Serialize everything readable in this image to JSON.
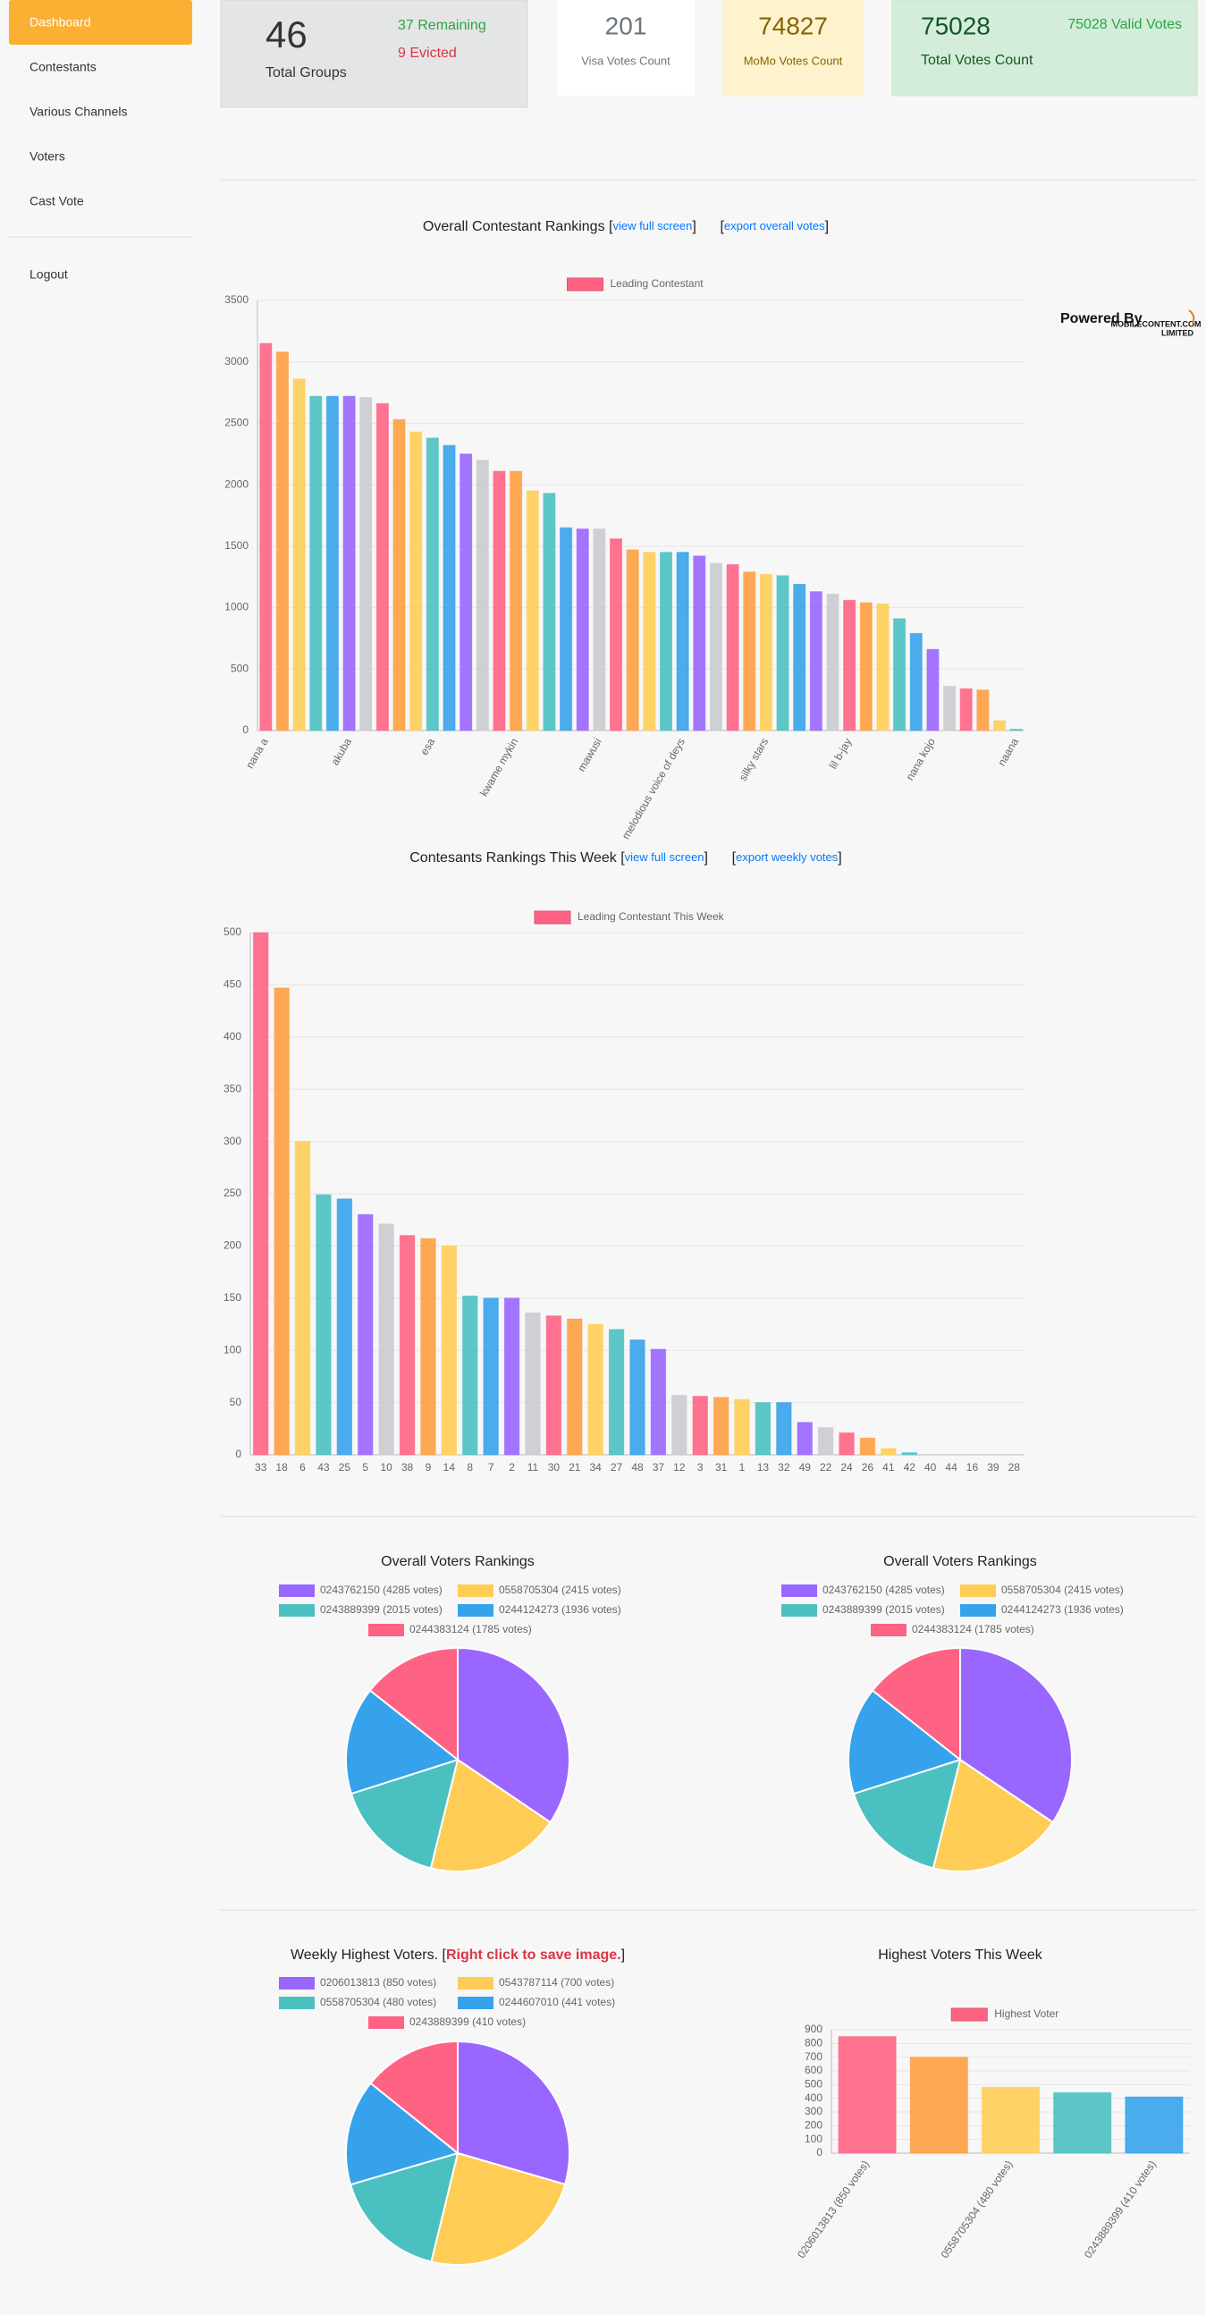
{
  "sidebar": {
    "items": [
      "Dashboard",
      "Contestants",
      "Various Channels",
      "Voters",
      "Cast Vote"
    ],
    "logout": "Logout"
  },
  "stats": {
    "groups": {
      "value": "46",
      "label": "Total Groups",
      "remaining": "37 Remaining",
      "evicted": "9 Evicted"
    },
    "visa": {
      "value": "201",
      "label": "Visa Votes Count"
    },
    "momo": {
      "value": "74827",
      "label": "MoMo Votes Count"
    },
    "total": {
      "value": "75028",
      "label": "Total Votes Count",
      "valid": "75028 Valid Votes"
    }
  },
  "powered_by": "Powered By",
  "logo": [
    "MOBILECONTENT.COM",
    "LIMITED"
  ],
  "chart_data": [
    {
      "type": "bar",
      "title_parts": [
        "Overall Contestant Rankings [",
        "view full screen",
        "]      [",
        "export overall votes",
        "]"
      ],
      "title_link_color": "#007bff",
      "legend": "Leading Contestant",
      "legend_color": "#ff6384",
      "categories": [
        "nana a",
        null,
        null,
        null,
        null,
        "akuba",
        null,
        null,
        null,
        null,
        "esa",
        null,
        null,
        null,
        null,
        "kwame mykin",
        null,
        null,
        null,
        null,
        "mawusi",
        null,
        null,
        null,
        null,
        "melodious voice of deys",
        null,
        null,
        null,
        null,
        "silky stars",
        null,
        null,
        null,
        null,
        "lil b-jay",
        null,
        null,
        null,
        null,
        "nana kojo",
        null,
        null,
        null,
        null,
        "naana"
      ],
      "values": [
        3150,
        3080,
        2860,
        2720,
        2720,
        2720,
        2710,
        2660,
        2530,
        2430,
        2380,
        2320,
        2250,
        2200,
        2110,
        2110,
        1950,
        1930,
        1650,
        1640,
        1640,
        1560,
        1470,
        1450,
        1450,
        1450,
        1420,
        1360,
        1350,
        1290,
        1270,
        1260,
        1190,
        1130,
        1110,
        1060,
        1040,
        1030,
        910,
        790,
        660,
        360,
        340,
        330,
        80,
        10
      ],
      "palette": [
        "#ff6384",
        "#ff9f40",
        "#ffcd56",
        "#4bc0c0",
        "#36a2eb",
        "#9966ff",
        "#c9cbcf"
      ],
      "ylim": [
        0,
        3500
      ],
      "yticks": [
        0,
        500,
        1000,
        1500,
        2000,
        2500,
        3000,
        3500
      ],
      "grid": true
    },
    {
      "type": "bar",
      "title_parts": [
        "Contesants Rankings This Week [",
        "view full screen",
        "]      [",
        "export weekly votes",
        "]"
      ],
      "title_link_color": "#007bff",
      "legend": "Leading Contestant This Week",
      "legend_color": "#ff6384",
      "categories": [
        "33",
        "18",
        "6",
        "43",
        "25",
        "5",
        "10",
        "38",
        "9",
        "14",
        "8",
        "7",
        "2",
        "11",
        "30",
        "21",
        "34",
        "27",
        "48",
        "37",
        "12",
        "3",
        "31",
        "1",
        "13",
        "32",
        "49",
        "22",
        "24",
        "26",
        "41",
        "42",
        "40",
        "44",
        "16",
        "39",
        "28"
      ],
      "values": [
        500,
        447,
        300,
        249,
        245,
        230,
        221,
        210,
        207,
        200,
        152,
        150,
        150,
        136,
        133,
        130,
        125,
        120,
        110,
        101,
        57,
        56,
        55,
        53,
        50,
        50,
        31,
        26,
        21,
        16,
        6,
        2,
        0,
        0,
        0,
        0,
        0
      ],
      "palette": [
        "#ff6384",
        "#ff9f40",
        "#ffcd56",
        "#4bc0c0",
        "#36a2eb",
        "#9966ff",
        "#c9cbcf"
      ],
      "ylim": [
        0,
        500
      ],
      "yticks": [
        0,
        50,
        100,
        150,
        200,
        250,
        300,
        350,
        400,
        450,
        500
      ],
      "grid": true
    },
    {
      "type": "pie",
      "title_parts": [
        "Overall Voters Rankings"
      ],
      "categories": [
        "0243762150 (4285 votes)",
        "0558705304 (2415 votes)",
        "0243889399 (2015 votes)",
        "0244124273 (1936 votes)",
        "0244383124 (1785 votes)"
      ],
      "values": [
        4285,
        2415,
        2015,
        1936,
        1785
      ],
      "palette": [
        "#9966ff",
        "#ffcd56",
        "#4bc0c0",
        "#36a2eb",
        "#ff6384"
      ]
    },
    {
      "type": "pie",
      "title_parts": [
        "Overall Voters Rankings"
      ],
      "categories": [
        "0243762150 (4285 votes)",
        "0558705304 (2415 votes)",
        "0243889399 (2015 votes)",
        "0244124273 (1936 votes)",
        "0244383124 (1785 votes)"
      ],
      "values": [
        4285,
        2415,
        2015,
        1936,
        1785
      ],
      "palette": [
        "#9966ff",
        "#ffcd56",
        "#4bc0c0",
        "#36a2eb",
        "#ff6384"
      ]
    },
    {
      "type": "pie",
      "title_parts": [
        "Weekly Highest Voters. [",
        "Right click to save image.",
        "]"
      ],
      "title_link_color": "#dc3545",
      "categories": [
        "0206013813 (850 votes)",
        "0543787114 (700 votes)",
        "0558705304 (480 votes)",
        "0244607010 (441 votes)",
        "0243889399 (410 votes)"
      ],
      "values": [
        850,
        700,
        480,
        441,
        410
      ],
      "palette": [
        "#9966ff",
        "#ffcd56",
        "#4bc0c0",
        "#36a2eb",
        "#ff6384"
      ]
    },
    {
      "type": "bar",
      "title_parts": [
        "Highest Voters This Week"
      ],
      "legend": "Highest Voter",
      "legend_color": "#ff6384",
      "categories": [
        "0206013813 (850 votes)",
        null,
        "0558705304 (480 votes)",
        null,
        "0243889399 (410 votes)"
      ],
      "values": [
        850,
        700,
        480,
        441,
        410
      ],
      "palette": [
        "#ff6384",
        "#ff9f40",
        "#ffcd56",
        "#4bc0c0",
        "#36a2eb"
      ],
      "ylim": [
        0,
        900
      ],
      "yticks": [
        0,
        100,
        200,
        300,
        400,
        500,
        600,
        700,
        800,
        900
      ],
      "grid": true
    }
  ]
}
